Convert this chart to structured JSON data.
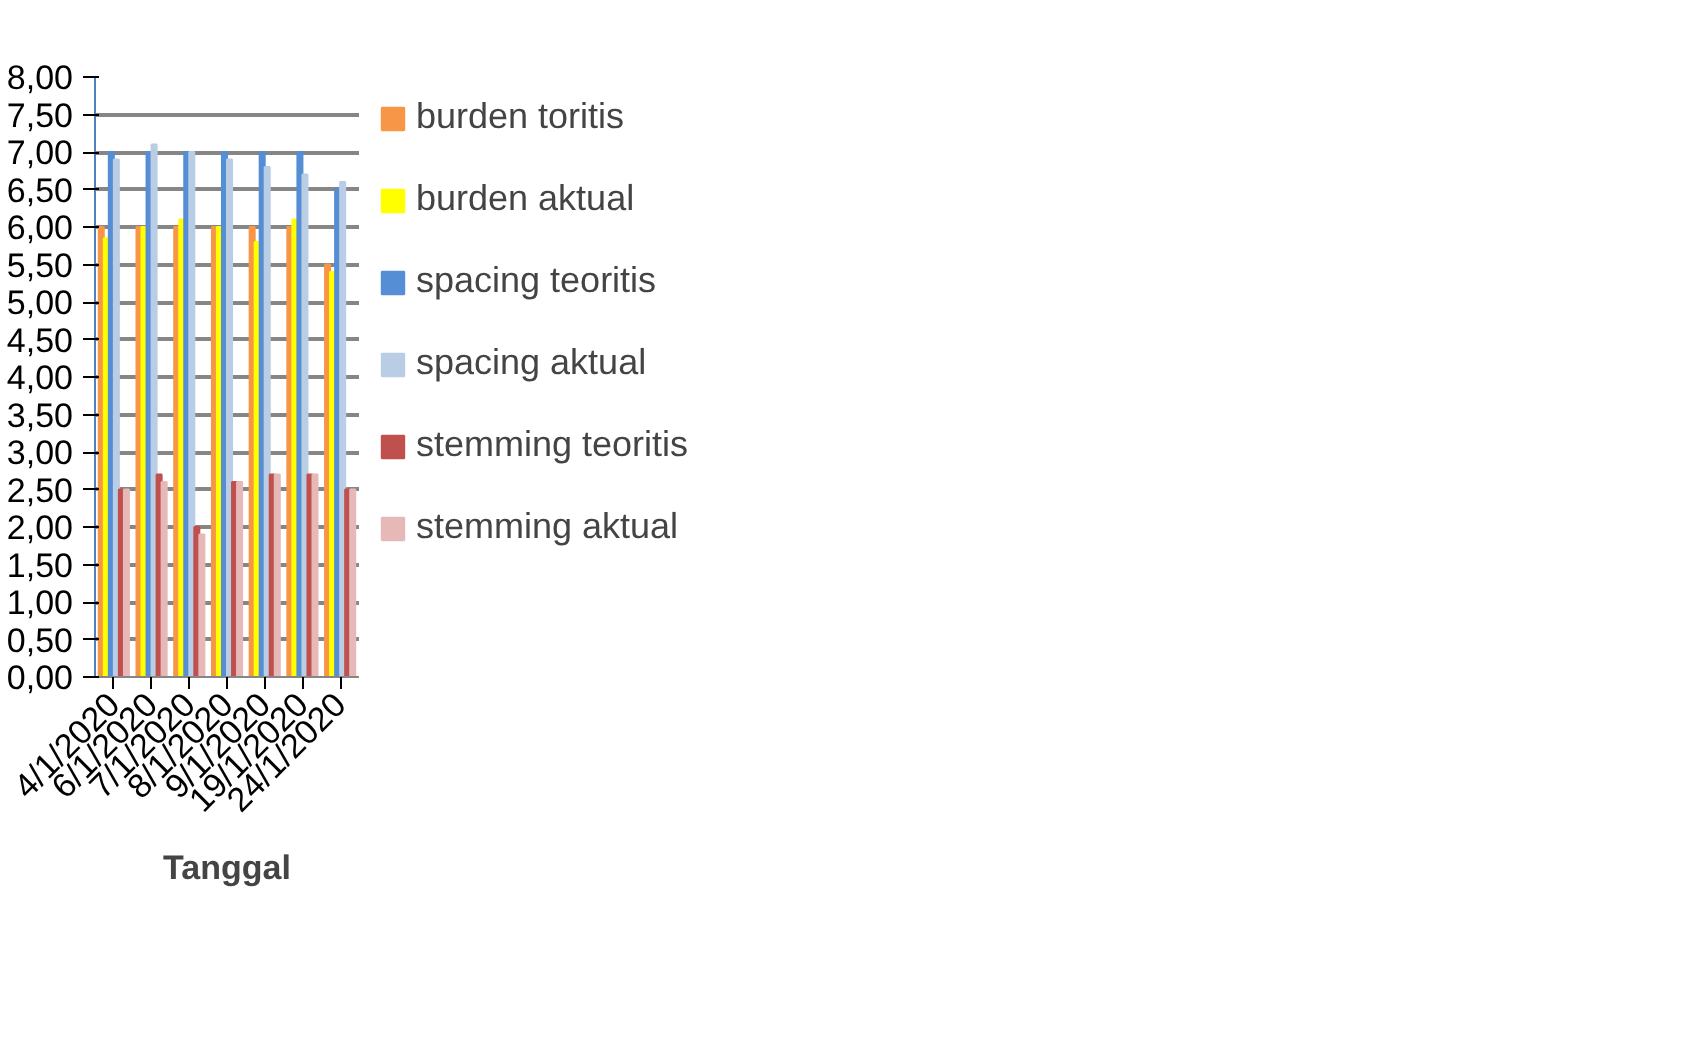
{
  "chart_data": {
    "type": "bar",
    "xlabel": "Tanggal",
    "categories": [
      "4/1/2020",
      "6/1/2020",
      "7/1/2020",
      "8/1/2020",
      "9/1/2020",
      "19/1/2020",
      "24/1/2020"
    ],
    "series": [
      {
        "name": "burden toritis",
        "color": "#f79646",
        "values": [
          6.0,
          6.0,
          6.0,
          6.0,
          6.0,
          6.0,
          5.5
        ]
      },
      {
        "name": "burden aktual",
        "color": "#ffff00",
        "values": [
          5.85,
          6.0,
          6.1,
          6.0,
          5.8,
          6.1,
          5.4
        ]
      },
      {
        "name": "spacing teoritis",
        "color": "#558ed5",
        "values": [
          7.0,
          7.0,
          7.0,
          7.0,
          7.0,
          7.0,
          6.5
        ]
      },
      {
        "name": "spacing aktual",
        "color": "#b9cde5",
        "values": [
          6.9,
          7.1,
          7.0,
          6.9,
          6.8,
          6.7,
          6.6
        ]
      },
      {
        "name": "stemming teoritis",
        "color": "#c0504d",
        "values": [
          2.5,
          2.7,
          2.0,
          2.6,
          2.7,
          2.7,
          2.5
        ]
      },
      {
        "name": "stemming aktual",
        "color": "#e6b9b8",
        "values": [
          2.5,
          2.6,
          1.9,
          2.6,
          2.7,
          2.7,
          2.5
        ]
      }
    ],
    "ylim": [
      0,
      8
    ],
    "yticks": [
      {
        "value": 0,
        "label": "0,00"
      },
      {
        "value": 0.5,
        "label": "0,50"
      },
      {
        "value": 1,
        "label": "1,00"
      },
      {
        "value": 1.5,
        "label": "1,50"
      },
      {
        "value": 2,
        "label": "2,00"
      },
      {
        "value": 2.5,
        "label": "2,50"
      },
      {
        "value": 3,
        "label": "3,00"
      },
      {
        "value": 3.5,
        "label": "3,50"
      },
      {
        "value": 4,
        "label": "4,00"
      },
      {
        "value": 4.5,
        "label": "4,50"
      },
      {
        "value": 5,
        "label": "5,00"
      },
      {
        "value": 5.5,
        "label": "5,50"
      },
      {
        "value": 6,
        "label": "6,00"
      },
      {
        "value": 6.5,
        "label": "6,50"
      },
      {
        "value": 7,
        "label": "7,00"
      },
      {
        "value": 7.5,
        "label": "7,50"
      },
      {
        "value": 8,
        "label": "8,00"
      }
    ],
    "grid": "y",
    "legend": "right"
  }
}
